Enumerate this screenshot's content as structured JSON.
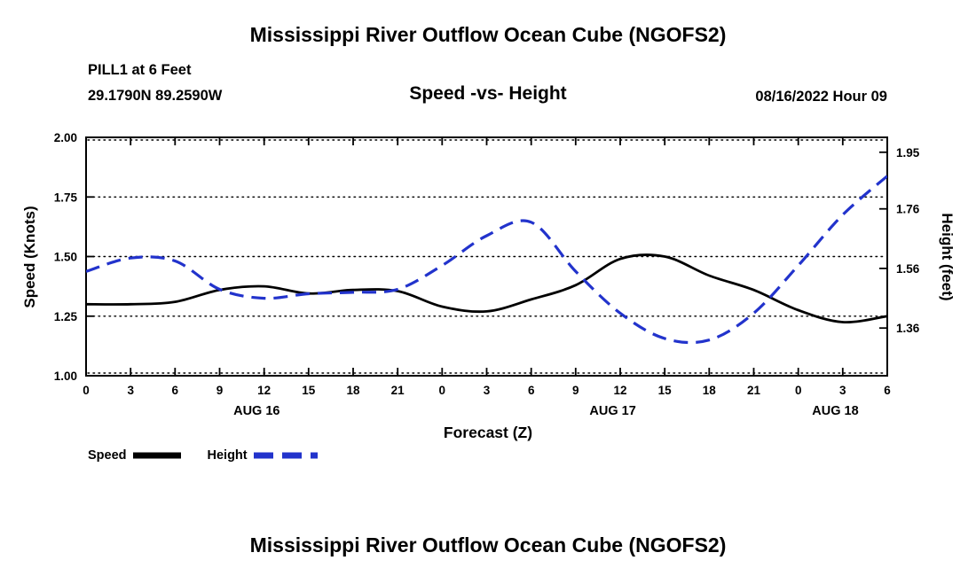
{
  "titles": {
    "top": "Mississippi River Outflow Ocean Cube (NGOFS2)",
    "bottom": "Mississippi River Outflow Ocean Cube (NGOFS2)"
  },
  "header": {
    "station_name": "PILL1 at 6 Feet",
    "station_coords": "29.1790N  89.2590W",
    "plot_subtitle": "Speed -vs- Height",
    "run_datetime": "08/16/2022 Hour 09"
  },
  "legend": {
    "items": [
      {
        "label": "Speed",
        "color": "#000000",
        "style": "solid"
      },
      {
        "label": "Height",
        "color": "#2233cc",
        "style": "dashed"
      }
    ]
  },
  "chart_data": {
    "type": "line",
    "title": "Speed -vs- Height",
    "xlabel": "Forecast (Z)",
    "grid": "horizontal-dotted",
    "x_hours": [
      0,
      3,
      6,
      9,
      12,
      15,
      18,
      21,
      24,
      27,
      30,
      33,
      36,
      39,
      42,
      45,
      48,
      51,
      54
    ],
    "x_tick_labels": [
      "0",
      "3",
      "6",
      "9",
      "12",
      "15",
      "18",
      "21",
      "0",
      "3",
      "6",
      "9",
      "12",
      "15",
      "18",
      "21",
      "0",
      "3",
      "6"
    ],
    "day_labels": [
      {
        "label": "AUG 16",
        "hour": 11.5
      },
      {
        "label": "AUG 17",
        "hour": 35.5
      },
      {
        "label": "AUG 18",
        "hour": 50.5
      }
    ],
    "left_axis": {
      "label": "Speed (Knots)",
      "min": 1.0,
      "max": 2.0,
      "tick_values": [
        1.0,
        1.25,
        1.5,
        1.75,
        2.0
      ],
      "tick_labels": [
        "1.00",
        "1.25",
        "1.50",
        "1.75",
        "2.00"
      ]
    },
    "right_axis": {
      "label": "Height (feet)",
      "min": 1.2,
      "max": 2.0,
      "tick_values": [
        1.36,
        1.56,
        1.76,
        1.95
      ],
      "tick_labels": [
        "1.36",
        "1.56",
        "1.76",
        "1.95"
      ]
    },
    "series": [
      {
        "name": "Speed",
        "axis": "left",
        "color": "#000000",
        "line_style": "solid",
        "values": [
          1.3,
          1.3,
          1.31,
          1.36,
          1.375,
          1.345,
          1.36,
          1.355,
          1.29,
          1.27,
          1.32,
          1.38,
          1.49,
          1.5,
          1.42,
          1.36,
          1.275,
          1.225,
          1.25
        ]
      },
      {
        "name": "Height",
        "axis": "right",
        "color": "#2233cc",
        "line_style": "dashed",
        "values": [
          1.55,
          1.595,
          1.585,
          1.49,
          1.46,
          1.475,
          1.48,
          1.49,
          1.57,
          1.67,
          1.715,
          1.55,
          1.41,
          1.325,
          1.32,
          1.41,
          1.57,
          1.74,
          1.87
        ]
      }
    ]
  }
}
